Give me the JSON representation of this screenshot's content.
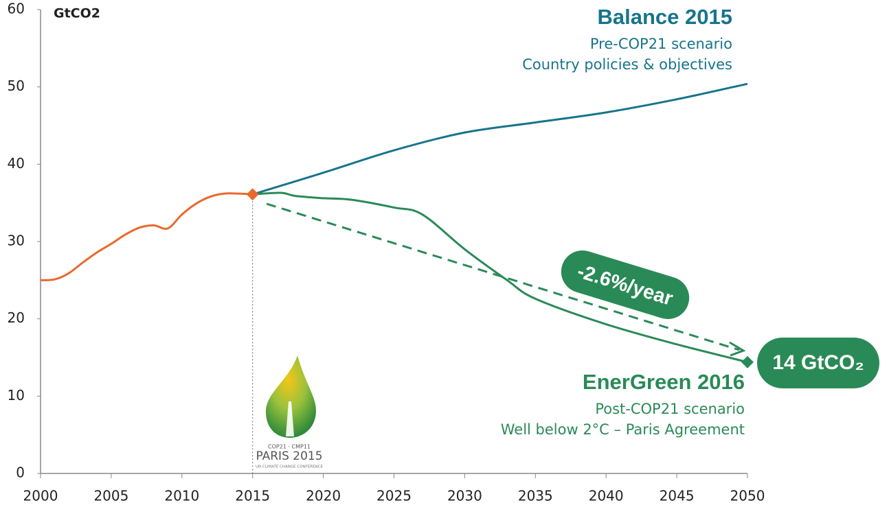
{
  "chart_data": {
    "type": "line",
    "y_label": "GtCO2",
    "xlim": [
      2000,
      2050
    ],
    "ylim": [
      0,
      60
    ],
    "xticks": [
      2000,
      2005,
      2010,
      2015,
      2020,
      2025,
      2030,
      2035,
      2040,
      2045,
      2050
    ],
    "yticks": [
      0,
      10,
      20,
      30,
      40,
      50,
      60
    ],
    "grid": false,
    "series": [
      {
        "color": "#e8692d",
        "x": [
          2000,
          2001,
          2002,
          2003,
          2004,
          2005,
          2006,
          2007,
          2008,
          2009,
          2010,
          2011,
          2012,
          2013,
          2014,
          2015
        ],
        "values": [
          25,
          25.1,
          25.9,
          27.3,
          28.6,
          29.7,
          30.9,
          31.8,
          32.1,
          31.7,
          33.5,
          34.9,
          35.8,
          36.2,
          36.2,
          36.1
        ]
      },
      {
        "name": "Balance 2015",
        "color": "#17748b",
        "subtitle": [
          "Pre-COP21 scenario",
          "Country policies & objectives"
        ],
        "x": [
          2015,
          2020,
          2025,
          2030,
          2035,
          2040,
          2045,
          2050
        ],
        "values": [
          36.1,
          38.9,
          41.8,
          44.1,
          45.4,
          46.7,
          48.4,
          50.4
        ]
      },
      {
        "name": "EnerGreen 2016",
        "color": "#2a8a57",
        "subtitle": [
          "Post-COP21 scenario",
          "Well below 2°C – Paris Agreement"
        ],
        "x": [
          2015,
          2017,
          2018,
          2020,
          2022,
          2025,
          2027,
          2030,
          2033,
          2035,
          2040,
          2045,
          2050
        ],
        "values": [
          36.1,
          36.3,
          35.9,
          35.6,
          35.4,
          34.4,
          33.5,
          29,
          25,
          22.6,
          19.3,
          16.7,
          14.4
        ],
        "end_label": "14 GtCO₂"
      }
    ],
    "trend_label": "-2.6%/year",
    "logo": [
      "COP21 · CMP11",
      "PARIS 2015",
      "UN CLIMATE CHANGE CONFERENCE"
    ]
  }
}
